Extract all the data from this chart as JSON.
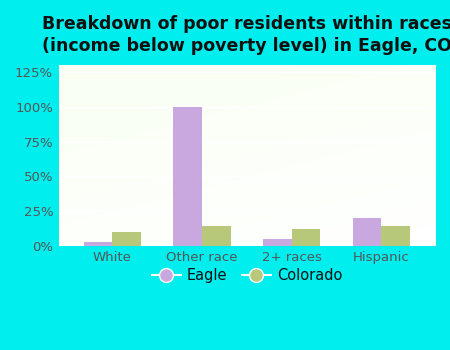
{
  "title": "Breakdown of poor residents within races\n(income below poverty level) in Eagle, CO",
  "categories": [
    "White",
    "Other race",
    "2+ races",
    "Hispanic"
  ],
  "eagle_values": [
    3,
    100,
    5,
    20
  ],
  "colorado_values": [
    10,
    14,
    12,
    14
  ],
  "eagle_color": "#c9a8e0",
  "colorado_color": "#b8c87a",
  "bg_outer": "#00eeee",
  "ylim": [
    0,
    130
  ],
  "yticks": [
    0,
    25,
    50,
    75,
    100,
    125
  ],
  "ytick_labels": [
    "0%",
    "25%",
    "50%",
    "75%",
    "100%",
    "125%"
  ],
  "bar_width": 0.32,
  "legend_labels": [
    "Eagle",
    "Colorado"
  ],
  "title_fontsize": 12.5,
  "tick_fontsize": 9.5,
  "label_color": "#555555"
}
